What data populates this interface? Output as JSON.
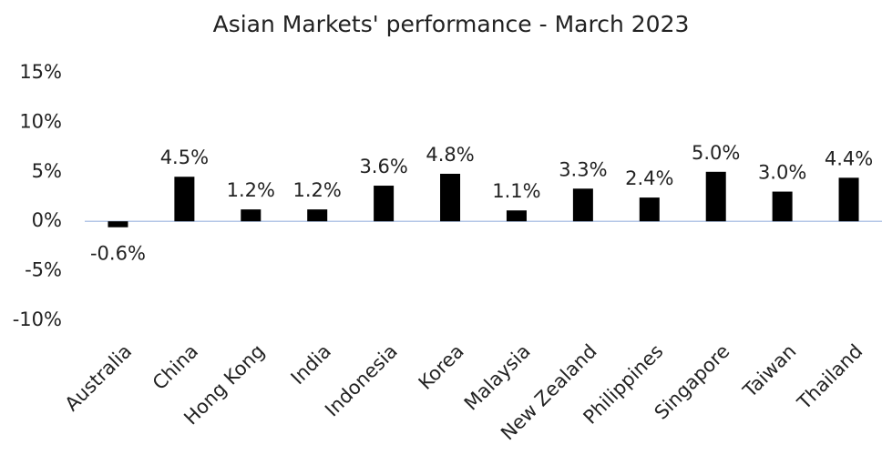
{
  "chart_data": {
    "type": "bar",
    "title": "Asian Markets' performance - March 2023",
    "categories": [
      "Australia",
      "China",
      "Hong Kong",
      "India",
      "Indonesia",
      "Korea",
      "Malaysia",
      "New Zealand",
      "Philippines",
      "Singapore",
      "Taiwan",
      "Thailand"
    ],
    "values": [
      -0.6,
      4.5,
      1.2,
      1.2,
      3.6,
      4.8,
      1.1,
      3.3,
      2.4,
      5.0,
      3.0,
      4.4
    ],
    "value_labels": [
      "-0.6%",
      "4.5%",
      "1.2%",
      "1.2%",
      "3.6%",
      "4.8%",
      "1.1%",
      "3.3%",
      "2.4%",
      "5.0%",
      "3.0%",
      "4.4%"
    ],
    "color": "#000000",
    "ylim": [
      -10,
      15
    ],
    "yticks": [
      {
        "value": -10,
        "label": "-10%"
      },
      {
        "value": -5,
        "label": "-5%"
      },
      {
        "value": 0,
        "label": "0%"
      },
      {
        "value": 5,
        "label": "5%"
      },
      {
        "value": 10,
        "label": "10%"
      },
      {
        "value": 15,
        "label": "15%"
      }
    ],
    "grid": false
  }
}
